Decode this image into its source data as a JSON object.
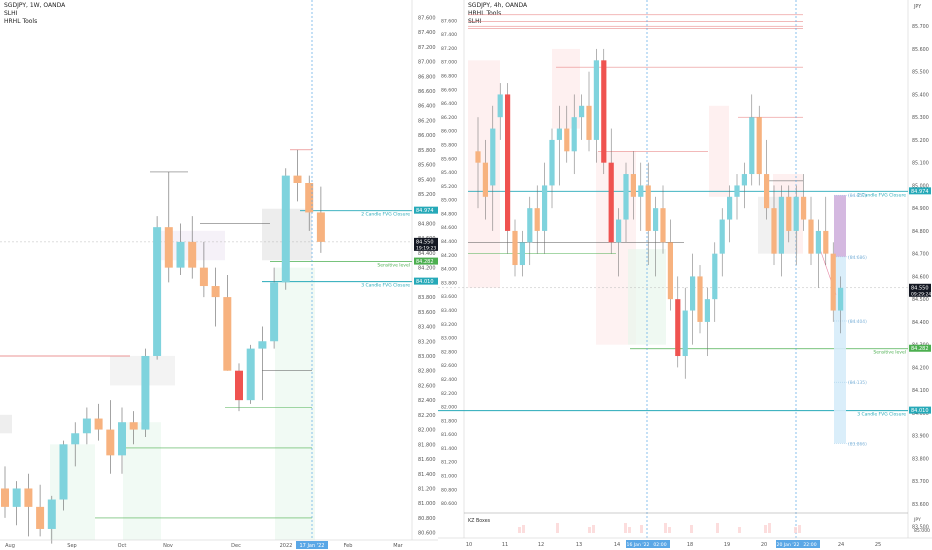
{
  "left_panel": {
    "header": {
      "title": "SGDJPY, 1W, OANDA",
      "lines": [
        "SLHI",
        "HRHL Tools"
      ]
    },
    "x_ticks": [
      "Aug",
      "Sep",
      "Oct",
      "Nov",
      "Dec",
      "2022",
      "Feb",
      "Mar"
    ],
    "current_date_label": "17 Jan '22",
    "annotations": [
      "2 Candle FVG Closure",
      "Sensitive level",
      "3 Candle FVG Closure"
    ]
  },
  "right_panel": {
    "header": {
      "title": "SGDJPY, 4h, OANDA",
      "lines": [
        "HRHL Tools",
        "SLHI"
      ]
    },
    "currency": "JPY",
    "x_ticks": [
      "10",
      "11",
      "12",
      "13",
      "14",
      "18",
      "19",
      "20",
      "24",
      "25"
    ],
    "time_labels": [
      "16 Jan '22",
      "02:00",
      "20 Jan '22",
      "22:00"
    ],
    "annotations": [
      "2 Candle FVG Closure",
      "Sensitive level",
      "3 Candle FVG Closure"
    ],
    "projection_labels": [
      "(84.957)",
      "(84.686)",
      "(84.404)",
      "(84.135)",
      "(83.866)"
    ],
    "indicator_label": "KZ Boxes",
    "indicator_axis": [
      "JPY",
      "85.000"
    ]
  },
  "axis_badges": {
    "current_price": "84.550",
    "countdown_left": "19:19:23",
    "countdown_right": "09:29:24",
    "fvg2": "84.974",
    "sensitive": "84.282",
    "fvg3": "84.010"
  },
  "colors": {
    "bull": "#7fd3dd",
    "bear": "#f7b27f",
    "bear_strong": "#ef5350",
    "bull_strong": "#4caf50",
    "fvg_line": "#26a9b8",
    "sensitive_line": "#4caf50",
    "resistance": "#e57373"
  },
  "chart_data": [
    {
      "type": "candlestick",
      "title": "SGDJPY, 1W, OANDA",
      "ylim": [
        80.5,
        87.7
      ],
      "y_ticks": [
        80.6,
        80.8,
        81.0,
        81.2,
        81.4,
        81.6,
        81.8,
        82.0,
        82.2,
        82.4,
        82.6,
        82.8,
        83.0,
        83.2,
        83.4,
        83.6,
        83.8,
        84.0,
        84.2,
        84.4,
        84.6,
        84.8,
        85.0,
        85.2,
        85.4,
        85.6,
        85.8,
        86.0,
        86.2,
        86.4,
        86.6,
        86.8,
        87.0,
        87.2,
        87.4,
        87.6
      ],
      "levels": {
        "fvg2": 84.974,
        "sensitive": 84.282,
        "fvg3": 84.01,
        "current": 84.55
      },
      "candles": [
        {
          "o": 81.2,
          "h": 81.5,
          "l": 80.8,
          "c": 80.95
        },
        {
          "o": 80.95,
          "h": 81.3,
          "l": 80.7,
          "c": 81.2
        },
        {
          "o": 81.2,
          "h": 81.4,
          "l": 80.55,
          "c": 80.95
        },
        {
          "o": 80.95,
          "h": 81.25,
          "l": 80.55,
          "c": 80.65
        },
        {
          "o": 80.65,
          "h": 81.1,
          "l": 80.45,
          "c": 81.05
        },
        {
          "o": 81.05,
          "h": 81.85,
          "l": 80.9,
          "c": 81.8
        },
        {
          "o": 81.8,
          "h": 82.1,
          "l": 81.5,
          "c": 81.95
        },
        {
          "o": 81.95,
          "h": 82.3,
          "l": 81.8,
          "c": 82.15
        },
        {
          "o": 82.15,
          "h": 82.35,
          "l": 81.85,
          "c": 82.0
        },
        {
          "o": 82.0,
          "h": 82.4,
          "l": 81.4,
          "c": 81.65
        },
        {
          "o": 81.65,
          "h": 82.3,
          "l": 81.4,
          "c": 82.1
        },
        {
          "o": 82.1,
          "h": 82.25,
          "l": 81.8,
          "c": 82.0
        },
        {
          "o": 82.0,
          "h": 83.1,
          "l": 81.9,
          "c": 83.0
        },
        {
          "o": 83.0,
          "h": 84.9,
          "l": 82.95,
          "c": 84.75
        },
        {
          "o": 84.75,
          "h": 85.5,
          "l": 84.0,
          "c": 84.2
        },
        {
          "o": 84.2,
          "h": 84.8,
          "l": 84.1,
          "c": 84.55
        },
        {
          "o": 84.55,
          "h": 84.9,
          "l": 84.05,
          "c": 84.2
        },
        {
          "o": 84.2,
          "h": 84.55,
          "l": 83.8,
          "c": 83.95
        },
        {
          "o": 83.95,
          "h": 84.2,
          "l": 83.4,
          "c": 83.8
        },
        {
          "o": 83.8,
          "h": 84.1,
          "l": 82.8,
          "c": 82.8
        },
        {
          "o": 82.8,
          "h": 82.9,
          "l": 82.25,
          "c": 82.4
        },
        {
          "o": 82.4,
          "h": 83.15,
          "l": 82.35,
          "c": 83.1
        },
        {
          "o": 83.1,
          "h": 83.4,
          "l": 82.4,
          "c": 83.2
        },
        {
          "o": 83.2,
          "h": 84.2,
          "l": 83.1,
          "c": 84.0
        },
        {
          "o": 84.0,
          "h": 85.55,
          "l": 83.9,
          "c": 85.45
        },
        {
          "o": 85.45,
          "h": 85.8,
          "l": 85.1,
          "c": 85.35
        },
        {
          "o": 85.35,
          "h": 85.45,
          "l": 84.7,
          "c": 84.95
        },
        {
          "o": 84.95,
          "h": 85.3,
          "l": 84.4,
          "c": 84.55
        }
      ]
    },
    {
      "type": "candlestick",
      "title": "SGDJPY, 4h, OANDA",
      "ylim": [
        80.5,
        87.75
      ],
      "y_ticks_right": [
        83.5,
        83.6,
        83.7,
        83.8,
        83.9,
        84.0,
        84.1,
        84.2,
        84.3,
        84.4,
        84.5,
        84.6,
        84.7,
        84.8,
        84.9,
        85.0,
        85.1,
        85.2,
        85.3,
        85.4,
        85.5,
        85.6,
        85.7
      ],
      "y_ticks_left": [
        80.6,
        80.8,
        81.0,
        81.2,
        81.4,
        81.6,
        81.8,
        82.0,
        82.2,
        82.4,
        82.6,
        82.8,
        83.0,
        83.2,
        83.4,
        83.6,
        83.8,
        84.0,
        84.2,
        84.4,
        84.6,
        84.8,
        85.0,
        85.2,
        85.4,
        85.6,
        85.8,
        86.0,
        86.2,
        86.4,
        86.6,
        86.8,
        87.0,
        87.2,
        87.4,
        87.6
      ],
      "levels": {
        "fvg2": 84.974,
        "sensitive": 84.282,
        "fvg3": 84.01,
        "current": 84.55
      },
      "projection": [
        84.957,
        84.686,
        84.404,
        84.135,
        83.866
      ],
      "candles": [
        {
          "o": 85.15,
          "h": 85.3,
          "l": 84.9,
          "c": 85.1
        },
        {
          "o": 85.1,
          "h": 85.2,
          "l": 84.85,
          "c": 84.95
        },
        {
          "o": 85.0,
          "h": 85.35,
          "l": 84.8,
          "c": 85.25
        },
        {
          "o": 85.3,
          "h": 85.45,
          "l": 85.2,
          "c": 85.4
        },
        {
          "o": 85.4,
          "h": 85.45,
          "l": 84.7,
          "c": 84.8
        },
        {
          "o": 84.8,
          "h": 84.85,
          "l": 84.6,
          "c": 84.65
        },
        {
          "o": 84.65,
          "h": 84.8,
          "l": 84.6,
          "c": 84.75
        },
        {
          "o": 84.75,
          "h": 84.95,
          "l": 84.65,
          "c": 84.9
        },
        {
          "o": 84.9,
          "h": 85.0,
          "l": 84.7,
          "c": 84.8
        },
        {
          "o": 84.8,
          "h": 85.1,
          "l": 84.7,
          "c": 85.0
        },
        {
          "o": 85.0,
          "h": 85.25,
          "l": 84.9,
          "c": 85.2
        },
        {
          "o": 85.2,
          "h": 85.35,
          "l": 85.0,
          "c": 85.25
        },
        {
          "o": 85.25,
          "h": 85.35,
          "l": 85.1,
          "c": 85.15
        },
        {
          "o": 85.15,
          "h": 85.4,
          "l": 85.05,
          "c": 85.3
        },
        {
          "o": 85.3,
          "h": 85.4,
          "l": 85.2,
          "c": 85.35
        },
        {
          "o": 85.35,
          "h": 85.5,
          "l": 85.15,
          "c": 85.2
        },
        {
          "o": 85.2,
          "h": 85.6,
          "l": 85.1,
          "c": 85.55
        },
        {
          "o": 85.55,
          "h": 85.6,
          "l": 85.05,
          "c": 85.1
        },
        {
          "o": 85.1,
          "h": 85.25,
          "l": 84.7,
          "c": 84.75
        },
        {
          "o": 84.75,
          "h": 84.9,
          "l": 84.6,
          "c": 84.85
        },
        {
          "o": 84.85,
          "h": 85.1,
          "l": 84.75,
          "c": 85.05
        },
        {
          "o": 85.05,
          "h": 85.15,
          "l": 84.85,
          "c": 84.95
        },
        {
          "o": 84.95,
          "h": 85.1,
          "l": 84.8,
          "c": 85.0
        },
        {
          "o": 85.0,
          "h": 85.1,
          "l": 84.65,
          "c": 84.8
        },
        {
          "o": 84.8,
          "h": 84.95,
          "l": 84.6,
          "c": 84.9
        },
        {
          "o": 84.9,
          "h": 85.0,
          "l": 84.7,
          "c": 84.75
        },
        {
          "o": 84.75,
          "h": 84.85,
          "l": 84.45,
          "c": 84.5
        },
        {
          "o": 84.5,
          "h": 84.6,
          "l": 84.2,
          "c": 84.25
        },
        {
          "o": 84.25,
          "h": 84.55,
          "l": 84.15,
          "c": 84.45
        },
        {
          "o": 84.45,
          "h": 84.7,
          "l": 84.3,
          "c": 84.6
        },
        {
          "o": 84.6,
          "h": 84.65,
          "l": 84.35,
          "c": 84.4
        },
        {
          "o": 84.4,
          "h": 84.55,
          "l": 84.25,
          "c": 84.5
        },
        {
          "o": 84.5,
          "h": 84.75,
          "l": 84.4,
          "c": 84.7
        },
        {
          "o": 84.7,
          "h": 84.9,
          "l": 84.6,
          "c": 84.85
        },
        {
          "o": 84.85,
          "h": 85.0,
          "l": 84.75,
          "c": 84.95
        },
        {
          "o": 84.95,
          "h": 85.05,
          "l": 84.85,
          "c": 85.0
        },
        {
          "o": 85.0,
          "h": 85.1,
          "l": 84.9,
          "c": 85.05
        },
        {
          "o": 85.05,
          "h": 85.4,
          "l": 85.0,
          "c": 85.3
        },
        {
          "o": 85.3,
          "h": 85.35,
          "l": 85.0,
          "c": 85.05
        },
        {
          "o": 85.05,
          "h": 85.2,
          "l": 84.85,
          "c": 84.9
        },
        {
          "o": 84.9,
          "h": 85.0,
          "l": 84.65,
          "c": 84.7
        },
        {
          "o": 84.7,
          "h": 85.0,
          "l": 84.6,
          "c": 84.95
        },
        {
          "o": 84.95,
          "h": 85.0,
          "l": 84.75,
          "c": 84.8
        },
        {
          "o": 84.8,
          "h": 85.0,
          "l": 84.65,
          "c": 84.95
        },
        {
          "o": 84.95,
          "h": 85.05,
          "l": 84.8,
          "c": 84.85
        },
        {
          "o": 84.85,
          "h": 84.95,
          "l": 84.65,
          "c": 84.7
        },
        {
          "o": 84.7,
          "h": 84.85,
          "l": 84.55,
          "c": 84.8
        },
        {
          "o": 84.8,
          "h": 84.95,
          "l": 84.65,
          "c": 84.7
        },
        {
          "o": 84.7,
          "h": 84.75,
          "l": 84.4,
          "c": 84.45
        },
        {
          "o": 84.45,
          "h": 84.6,
          "l": 84.35,
          "c": 84.55
        }
      ]
    }
  ]
}
